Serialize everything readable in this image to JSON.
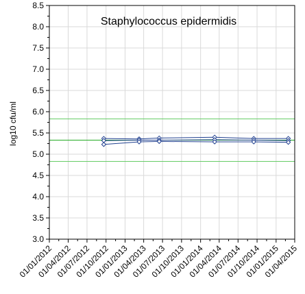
{
  "chart_data": {
    "type": "line",
    "title": "Staphylococcus epidermidis",
    "xlabel": "",
    "ylabel": "log10 cfu/ml",
    "ylim": [
      3.0,
      8.5
    ],
    "xlim": [
      "2012-01-01",
      "2015-04-01"
    ],
    "grid": true,
    "y_ticks": [
      "3.0",
      "3.5",
      "4.0",
      "4.5",
      "5.0",
      "5.5",
      "6.0",
      "6.5",
      "7.0",
      "7.5",
      "8.0",
      "8.5"
    ],
    "x_ticks": [
      "01/01/2012",
      "01/04/2012",
      "01/07/2012",
      "01/10/2012",
      "01/01/2013",
      "01/04/2013",
      "01/07/2013",
      "01/10/2013",
      "01/01/2014",
      "01/04/2014",
      "01/07/2014",
      "01/10/2014",
      "01/01/2015",
      "01/04/2015"
    ],
    "series": [
      {
        "color": "#1f3f8f",
        "marker": "diamond",
        "x": [
          "2012-09-20",
          "2013-03-10",
          "2013-06-15",
          "2014-03-10",
          "2014-09-15",
          "2015-03-01"
        ],
        "values": [
          5.37,
          5.36,
          5.38,
          5.4,
          5.37,
          5.37
        ]
      },
      {
        "color": "#1f3f8f",
        "marker": "diamond",
        "x": [
          "2012-09-20",
          "2013-03-10",
          "2013-06-15",
          "2014-03-10",
          "2014-09-15",
          "2015-03-01"
        ],
        "values": [
          5.32,
          5.33,
          5.33,
          5.34,
          5.33,
          5.32
        ]
      },
      {
        "color": "#1f3f8f",
        "marker": "diamond",
        "x": [
          "2012-09-20",
          "2013-03-10",
          "2013-06-15",
          "2014-03-10",
          "2014-09-15",
          "2015-03-01"
        ],
        "values": [
          5.23,
          5.29,
          5.3,
          5.29,
          5.29,
          5.28
        ]
      }
    ],
    "reference_lines": [
      {
        "value": 5.83,
        "color": "#66cc66"
      },
      {
        "value": 5.33,
        "color": "#22aa22"
      },
      {
        "value": 4.83,
        "color": "#66cc66"
      }
    ]
  }
}
